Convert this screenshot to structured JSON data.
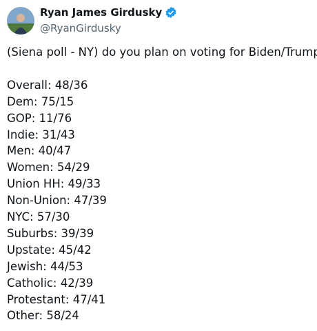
{
  "author": {
    "name": "Ryan James Girdusky",
    "handle": "@RyanGirdusky"
  },
  "tweet": {
    "intro": "(Siena poll - NY) do you plan on voting for Biden/Trump?",
    "lines": [
      "Overall: 48/36",
      "Dem: 75/15",
      "GOP: 11/76",
      "Indie: 31/43",
      "Men: 40/47",
      "Women: 54/29",
      "Union HH: 49/33",
      "Non-Union: 47/39",
      "NYC: 57/30",
      "Suburbs: 39/39",
      "Upstate: 45/42",
      "Jewish: 44/53",
      "Catholic: 42/39",
      "Protestant: 47/41",
      "Other: 58/24"
    ]
  }
}
